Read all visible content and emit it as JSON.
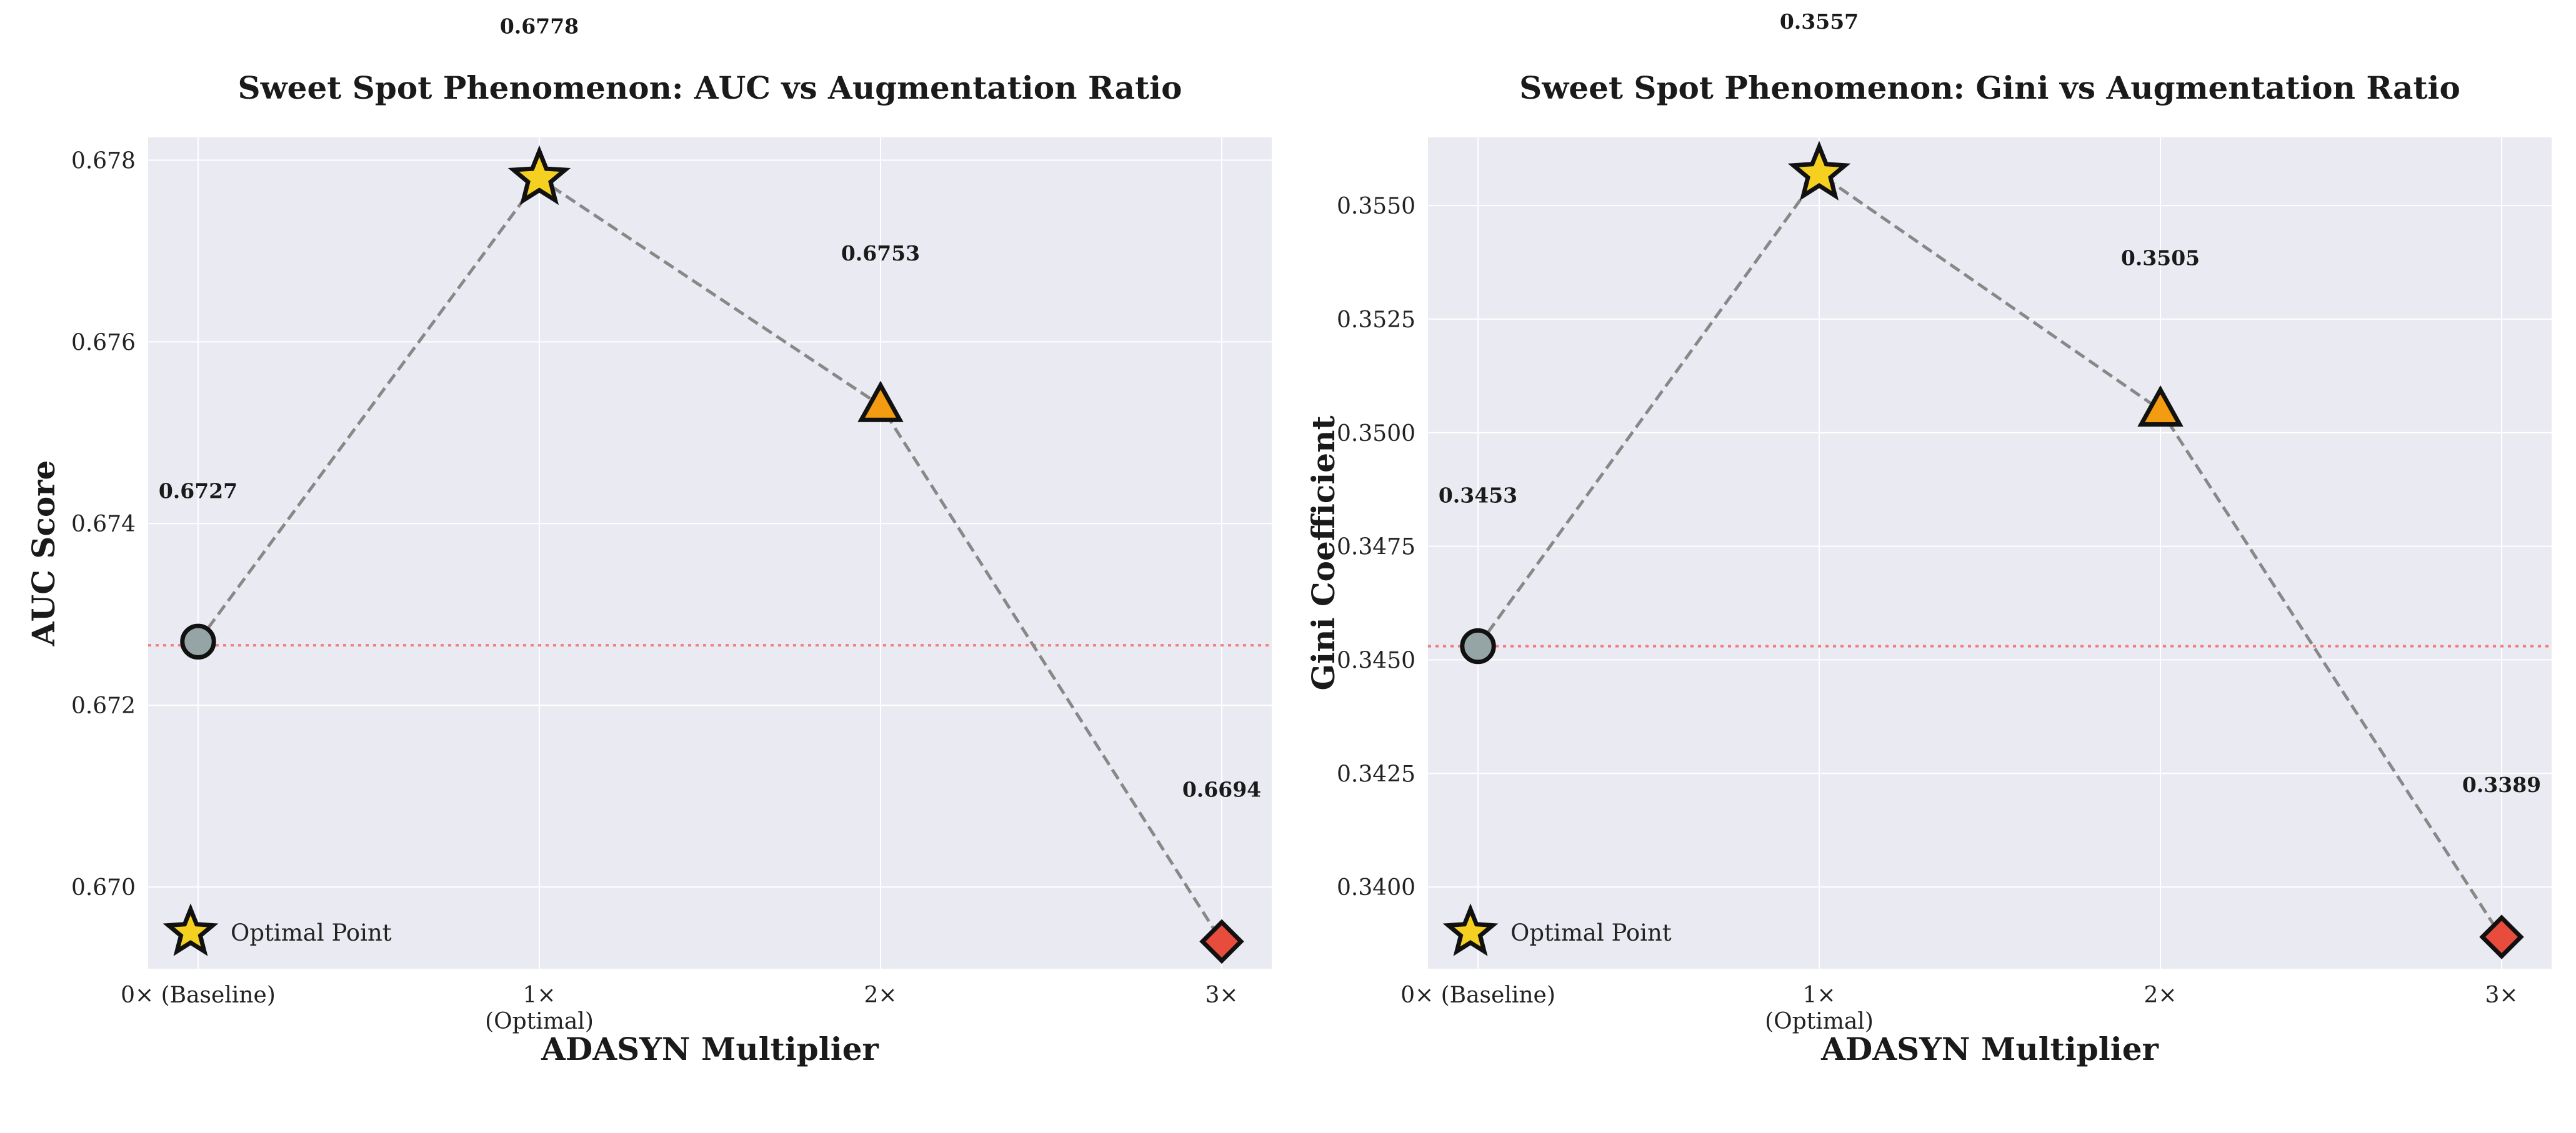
{
  "chart_data": [
    {
      "type": "line",
      "title": "Sweet Spot Phenomenon: AUC vs Augmentation Ratio",
      "xlabel": "ADASYN Multiplier",
      "ylabel": "AUC Score",
      "categories": [
        "0× (Baseline)",
        "1×\n(Optimal)",
        "2×",
        "3×"
      ],
      "values": [
        0.6727,
        0.6778,
        0.6753,
        0.6694
      ],
      "data_labels": [
        "0.6727",
        "0.6778",
        "0.6753",
        "0.6694"
      ],
      "markers": [
        "circle",
        "star",
        "triangle",
        "diamond"
      ],
      "marker_colors": [
        "#95a5a6",
        "#f5d020",
        "#f39c12",
        "#e74c3c"
      ],
      "baseline_value": 0.67266,
      "ylim": [
        0.6691,
        0.67825
      ],
      "yticks": [
        0.67,
        0.672,
        0.674,
        0.676,
        0.678
      ],
      "ytick_labels": [
        "0.670",
        "0.672",
        "0.674",
        "0.676",
        "0.678"
      ],
      "grid": true,
      "legend": {
        "label": "Optimal Point",
        "placement": "lower-left",
        "marker": "star"
      }
    },
    {
      "type": "line",
      "title": "Sweet Spot Phenomenon: Gini vs Augmentation Ratio",
      "xlabel": "ADASYN Multiplier",
      "ylabel": "Gini Coefficient",
      "categories": [
        "0× (Baseline)",
        "1×\n(Optimal)",
        "2×",
        "3×"
      ],
      "values": [
        0.3453,
        0.3557,
        0.3505,
        0.3389
      ],
      "data_labels": [
        "0.3453",
        "0.3557",
        "0.3505",
        "0.3389"
      ],
      "markers": [
        "circle",
        "star",
        "triangle",
        "diamond"
      ],
      "marker_colors": [
        "#95a5a6",
        "#f5d020",
        "#f39c12",
        "#e74c3c"
      ],
      "baseline_value": 0.3453,
      "ylim": [
        0.3382,
        0.3565
      ],
      "yticks": [
        0.34,
        0.3425,
        0.345,
        0.3475,
        0.35,
        0.3525,
        0.355
      ],
      "ytick_labels": [
        "0.3400",
        "0.3425",
        "0.3450",
        "0.3475",
        "0.3500",
        "0.3525",
        "0.3550"
      ],
      "grid": true,
      "legend": {
        "label": "Optimal Point",
        "placement": "lower-left",
        "marker": "star"
      }
    }
  ]
}
